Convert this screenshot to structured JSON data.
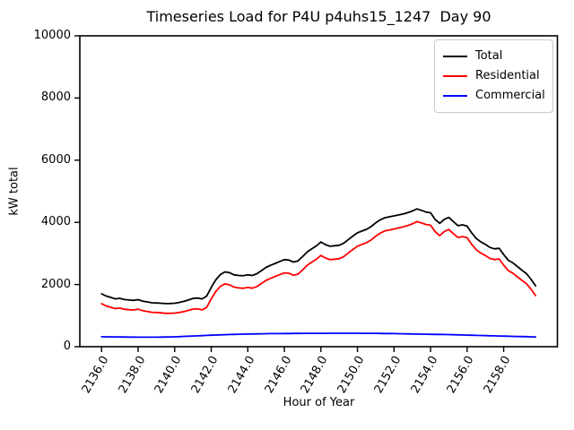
{
  "figure": {
    "title": "Timeseries Load for P4U p4uhs15_1247  Day 90",
    "xlabel": "Hour of Year",
    "ylabel": "kW total"
  },
  "legend": {
    "position": "upper right",
    "items": [
      {
        "label": "Total",
        "color": "#000000"
      },
      {
        "label": "Residential",
        "color": "#ff0000"
      },
      {
        "label": "Commercial",
        "color": "#0000ff"
      }
    ]
  },
  "chart_data": {
    "type": "line",
    "title": "Timeseries Load for P4U p4uhs15_1247  Day 90",
    "xlabel": "Hour of Year",
    "ylabel": "kW total",
    "x_start": 2136.0,
    "x_step": 0.25,
    "xlim": [
      2134.81,
      2160.94
    ],
    "ylim": [
      0,
      10000
    ],
    "x_ticks": [
      2136,
      2138,
      2140,
      2142,
      2144,
      2146,
      2148,
      2150,
      2152,
      2154,
      2156,
      2158
    ],
    "x_tick_labels": [
      "2136.0",
      "2138.0",
      "2140.0",
      "2142.0",
      "2144.0",
      "2146.0",
      "2148.0",
      "2150.0",
      "2152.0",
      "2154.0",
      "2156.0",
      "2158.0"
    ],
    "y_ticks": [
      0,
      2000,
      4000,
      6000,
      8000,
      10000
    ],
    "y_tick_labels": [
      "0",
      "2000",
      "4000",
      "6000",
      "8000",
      "10000"
    ],
    "grid": false,
    "legend_position": "upper right",
    "series": [
      {
        "name": "Total",
        "color": "#000000",
        "values": [
          1700,
          1630,
          1585,
          1540,
          1555,
          1515,
          1500,
          1490,
          1512,
          1465,
          1440,
          1412,
          1405,
          1398,
          1385,
          1390,
          1398,
          1425,
          1458,
          1502,
          1552,
          1565,
          1540,
          1625,
          1905,
          2150,
          2320,
          2405,
          2380,
          2312,
          2290,
          2282,
          2312,
          2292,
          2350,
          2450,
          2550,
          2620,
          2680,
          2740,
          2800,
          2788,
          2722,
          2762,
          2900,
          3048,
          3150,
          3242,
          3368,
          3282,
          3230,
          3248,
          3262,
          3330,
          3448,
          3558,
          3665,
          3720,
          3775,
          3862,
          3985,
          4080,
          4148,
          4178,
          4208,
          4240,
          4268,
          4310,
          4362,
          4432,
          4385,
          4332,
          4308,
          4092,
          3968,
          4098,
          4158,
          4022,
          3892,
          3918,
          3878,
          3662,
          3482,
          3372,
          3290,
          3192,
          3148,
          3168,
          2962,
          2782,
          2698,
          2578,
          2458,
          2348,
          2162,
          1958
        ]
      },
      {
        "name": "Residential",
        "color": "#ff0000",
        "values": [
          1380,
          1312,
          1269,
          1226,
          1243,
          1205,
          1191,
          1182,
          1206,
          1159,
          1134,
          1107,
          1100,
          1090,
          1073,
          1075,
          1080,
          1101,
          1128,
          1166,
          1210,
          1217,
          1185,
          1263,
          1537,
          1776,
          1940,
          2019,
          1988,
          1916,
          1890,
          1878,
          1904,
          1882,
          1937,
          2034,
          2132,
          2200,
          2259,
          2318,
          2376,
          2363,
          2296,
          2335,
          2472,
          2620,
          2721,
          2812,
          2938,
          2852,
          2799,
          2816,
          2830,
          2898,
          3016,
          3127,
          3234,
          3290,
          3345,
          3433,
          3557,
          3654,
          3724,
          3755,
          3787,
          3822,
          3852,
          3897,
          3952,
          4025,
          3981,
          3930,
          3909,
          3696,
          3574,
          3707,
          3770,
          3638,
          3512,
          3541,
          3505,
          3293,
          3118,
          3012,
          2934,
          2840,
          2800,
          2824,
          2622,
          2446,
          2366,
          2249,
          2133,
          2026,
          1844,
          1643
        ]
      },
      {
        "name": "Commercial",
        "color": "#0000ff",
        "values": [
          320,
          318,
          316,
          314,
          312,
          310,
          309,
          308,
          306,
          306,
          306,
          305,
          305,
          308,
          312,
          315,
          318,
          324,
          330,
          336,
          342,
          348,
          355,
          362,
          368,
          374,
          380,
          386,
          392,
          396,
          400,
          404,
          408,
          410,
          413,
          416,
          418,
          420,
          421,
          422,
          424,
          425,
          426,
          427,
          428,
          428,
          429,
          430,
          430,
          430,
          431,
          432,
          432,
          432,
          432,
          431,
          431,
          430,
          430,
          429,
          428,
          426,
          424,
          423,
          421,
          418,
          416,
          413,
          410,
          407,
          404,
          402,
          399,
          396,
          394,
          391,
          388,
          384,
          380,
          377,
          373,
          369,
          364,
          360,
          356,
          352,
          348,
          344,
          340,
          336,
          332,
          329,
          325,
          322,
          318,
          315
        ]
      }
    ]
  }
}
